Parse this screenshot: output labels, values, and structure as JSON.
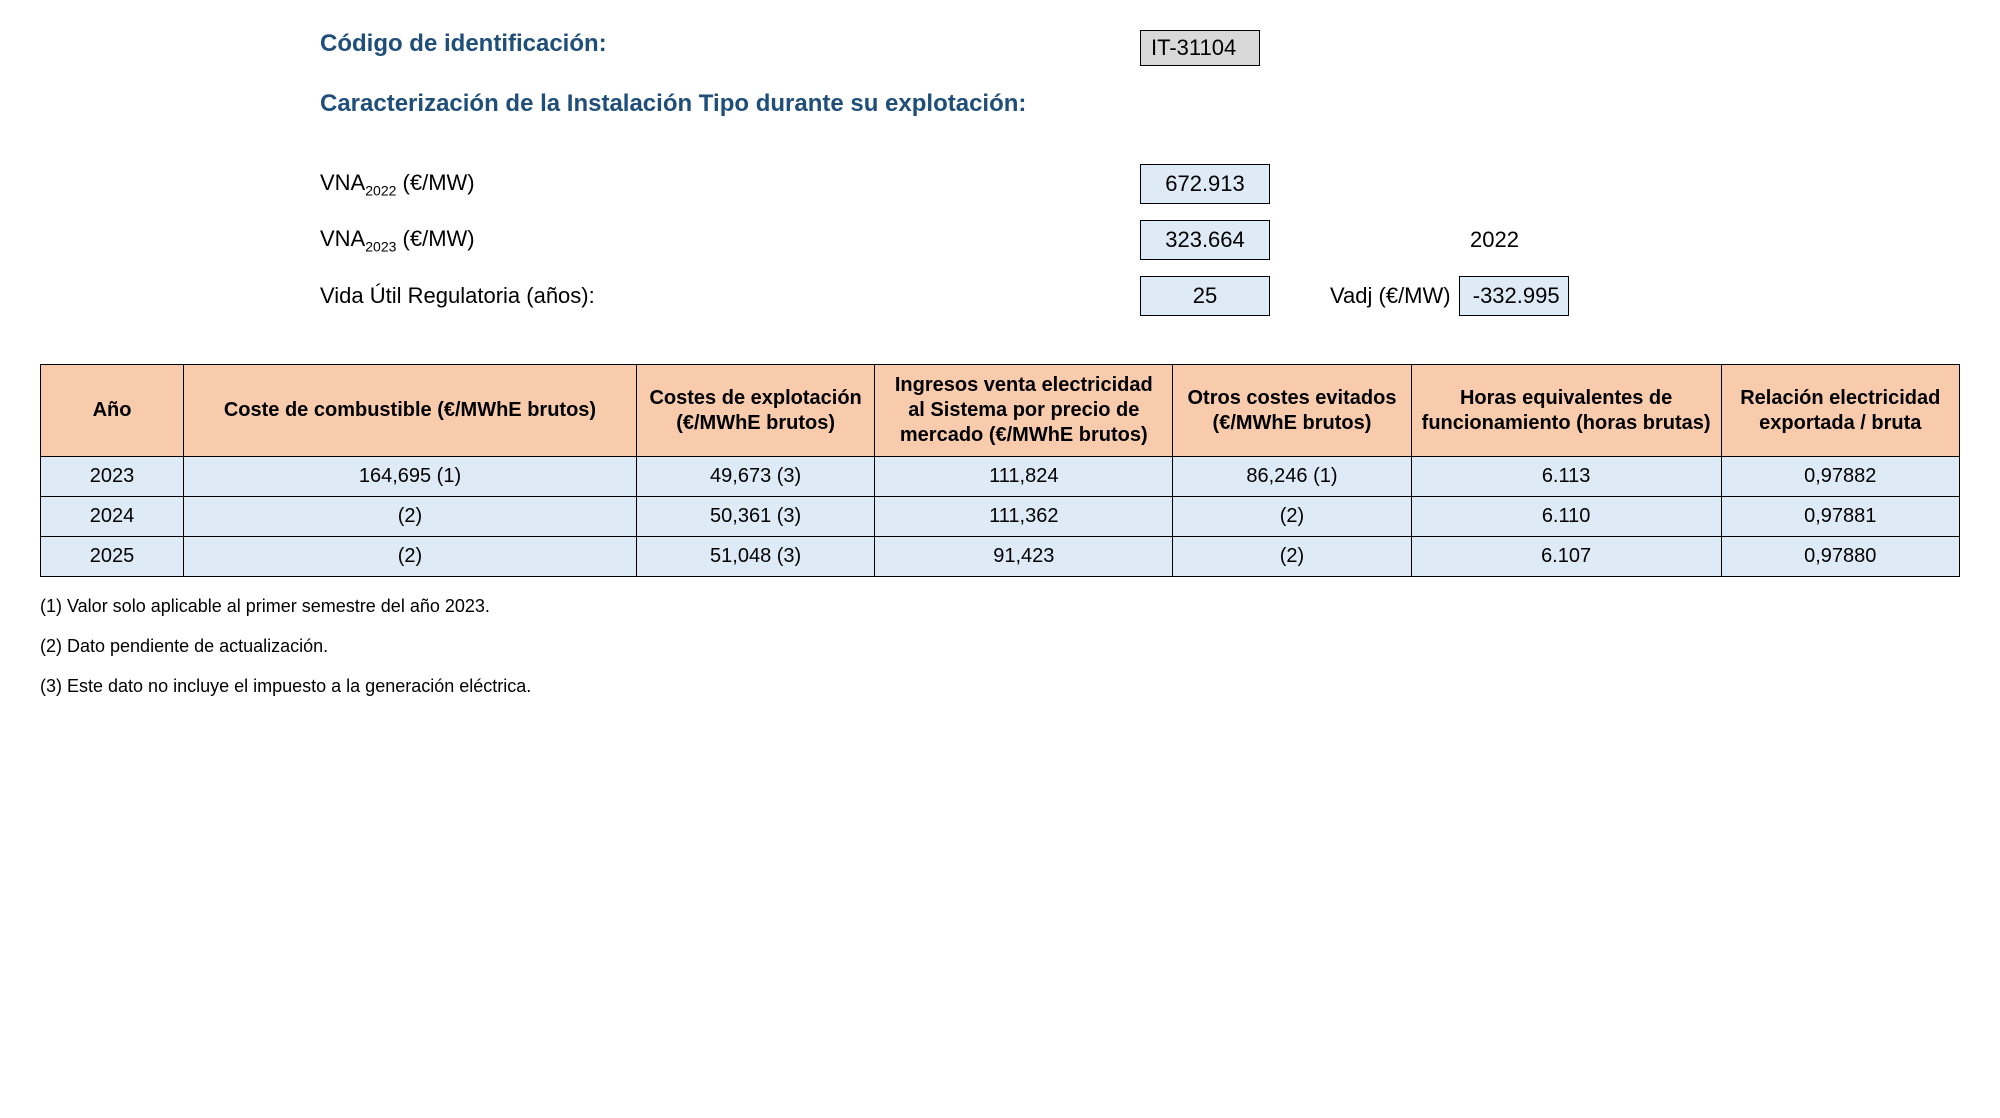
{
  "header": {
    "codigo_label": "Código de identificación:",
    "codigo_value": "IT-31104",
    "caracterizacion_label": "Caracterización de la Instalación Tipo durante su explotación:"
  },
  "params": {
    "vna2022_label_prefix": "VNA",
    "vna2022_sub": "2022",
    "vna2022_unit": " (€/MW)",
    "vna2022_value": "672.913",
    "vna2023_label_prefix": "VNA",
    "vna2023_sub": "2023",
    "vna2023_unit": " (€/MW)",
    "vna2023_value": "323.664",
    "year_right": "2022",
    "vida_label": "Vida Útil Regulatoria (años):",
    "vida_value": "25",
    "vadj_label": "Vadj (€/MW)",
    "vadj_value": "-332.995"
  },
  "table": {
    "columns": [
      "Año",
      "Coste de combustible (€/MWhE brutos)",
      "Costes de explotación (€/MWhE brutos)",
      "Ingresos venta electricidad al Sistema por precio de mercado (€/MWhE brutos)",
      "Otros costes evitados (€/MWhE brutos)",
      "Horas equivalentes de funcionamiento (horas brutas)",
      "Relación electricidad exportada / bruta"
    ],
    "rows": [
      [
        "2023",
        "164,695 (1)",
        "49,673 (3)",
        "111,824",
        "86,246 (1)",
        "6.113",
        "0,97882"
      ],
      [
        "2024",
        "(2)",
        "50,361 (3)",
        "111,362",
        "(2)",
        "6.110",
        "0,97881"
      ],
      [
        "2025",
        "(2)",
        "51,048 (3)",
        "91,423",
        "(2)",
        "6.107",
        "0,97880"
      ]
    ],
    "header_bg": "#f8cbad",
    "row_bg": "#deebf7",
    "border_color": "#000000"
  },
  "footnotes": [
    "(1) Valor solo aplicable al primer semestre del año 2023.",
    "(2) Dato pendiente de actualización.",
    "(3) Este dato no incluye el impuesto a la generación eléctrica."
  ],
  "colors": {
    "heading": "#1f4e79",
    "code_bg": "#d9d9d9",
    "value_bg": "#deebf7",
    "page_bg": "#ffffff"
  }
}
